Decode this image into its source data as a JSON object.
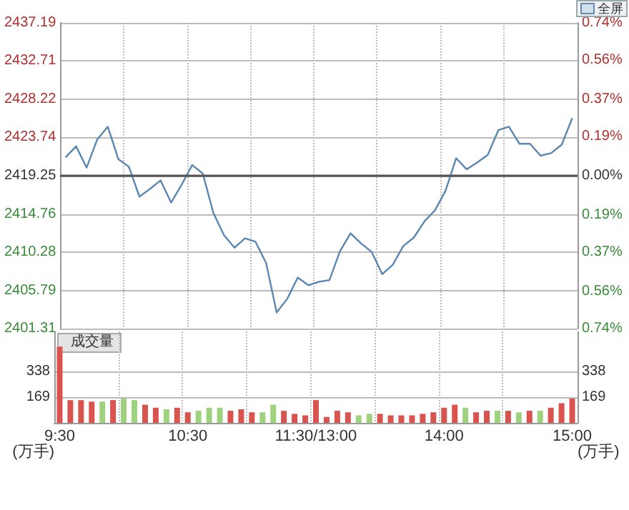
{
  "chart_data": [
    {
      "type": "line",
      "annotations": [
        "全屏"
      ],
      "categories": [
        null,
        null,
        null,
        null,
        null,
        null,
        null,
        null,
        null,
        null,
        null,
        null,
        null,
        null,
        null,
        null,
        null,
        null,
        null,
        null,
        null,
        null,
        null,
        null,
        null,
        null,
        null,
        null,
        null,
        null,
        null,
        null,
        null,
        null,
        null,
        null,
        null,
        null,
        null,
        null,
        null,
        null,
        null,
        null,
        null,
        null,
        null,
        null,
        null
      ],
      "series": [
        {
          "color": "#5b87b0",
          "values": [
            2421.4,
            2422.7,
            2420.2,
            2423.5,
            2425.0,
            2421.2,
            2420.3,
            2416.8,
            2417.7,
            2418.7,
            2416.1,
            2418.2,
            2420.5,
            2419.5,
            2414.9,
            2412.3,
            2410.8,
            2411.9,
            2411.5,
            2409.0,
            2403.2,
            2404.8,
            2407.3,
            2406.4,
            2406.8,
            2407.0,
            2410.4,
            2412.5,
            2411.3,
            2410.3,
            2407.7,
            2408.8,
            2411.0,
            2412.0,
            2413.9,
            2415.2,
            2417.5,
            2421.3,
            2420.0,
            2420.8,
            2421.7,
            2424.6,
            2425.0,
            2423.0,
            2423.0,
            2421.6,
            2421.9,
            2422.9,
            2426.0
          ]
        }
      ],
      "ylim": [
        2401.31,
        2437.19
      ],
      "yticks": [
        2401.31,
        2405.79,
        2410.28,
        2414.76,
        2419.25,
        2423.74,
        2428.22,
        2432.71,
        2437.19
      ],
      "y2lim": [
        -0.74,
        0.74
      ],
      "y2ticks": [
        {
          "value": -0.74,
          "label": "0.74%"
        },
        {
          "value": -0.56,
          "label": "0.56%"
        },
        {
          "value": -0.37,
          "label": "0.37%"
        },
        {
          "value": -0.19,
          "label": "0.19%"
        },
        {
          "value": 0,
          "label": "0.00%"
        },
        {
          "value": 0.19,
          "label": "0.19%"
        },
        {
          "value": 0.37,
          "label": "0.37%"
        },
        {
          "value": 0.56,
          "label": "0.56%"
        },
        {
          "value": 0.74,
          "label": "0.74%"
        }
      ],
      "ref_lines": [
        {
          "axis": "y",
          "value": 2419.25,
          "color": "#555555"
        }
      ],
      "grid": true,
      "tick_labels": "y",
      "line_style": "solid"
    },
    {
      "type": "bar",
      "ylabel": "(万手)",
      "y2label": "(万手)",
      "annotations": [
        "成交量"
      ],
      "categories": [
        "9:30",
        null,
        null,
        null,
        null,
        null,
        null,
        null,
        null,
        null,
        null,
        null,
        "10:30",
        null,
        null,
        null,
        null,
        null,
        null,
        null,
        null,
        null,
        null,
        null,
        "11:30/13:00",
        null,
        null,
        null,
        null,
        null,
        null,
        null,
        null,
        null,
        null,
        null,
        "14:00",
        null,
        null,
        null,
        null,
        null,
        null,
        null,
        null,
        null,
        null,
        null,
        "15:00"
      ],
      "values": [
        500,
        150,
        150,
        140,
        140,
        150,
        160,
        150,
        120,
        100,
        90,
        100,
        70,
        80,
        100,
        100,
        80,
        90,
        70,
        70,
        120,
        80,
        60,
        50,
        150,
        40,
        80,
        70,
        50,
        60,
        60,
        50,
        50,
        50,
        60,
        70,
        100,
        120,
        100,
        70,
        80,
        80,
        80,
        70,
        80,
        80,
        100,
        130,
        160
      ],
      "colors": [
        "#d9534f",
        "#d9534f",
        "#d9534f",
        "#d9534f",
        "#9fd27f",
        "#d9534f",
        "#9fd27f",
        "#9fd27f",
        "#d9534f",
        "#d9534f",
        "#9fd27f",
        "#d9534f",
        "#d9534f",
        "#9fd27f",
        "#9fd27f",
        "#9fd27f",
        "#d9534f",
        "#d9534f",
        "#d9534f",
        "#9fd27f",
        "#9fd27f",
        "#d9534f",
        "#d9534f",
        "#d9534f",
        "#d9534f",
        "#d9534f",
        "#d9534f",
        "#d9534f",
        "#9fd27f",
        "#9fd27f",
        "#d9534f",
        "#d9534f",
        "#d9534f",
        "#d9534f",
        "#d9534f",
        "#d9534f",
        "#d9534f",
        "#d9534f",
        "#9fd27f",
        "#d9534f",
        "#d9534f",
        "#9fd27f",
        "#d9534f",
        "#9fd27f",
        "#d9534f",
        "#9fd27f",
        "#d9534f",
        "#d9534f",
        "#d9534f"
      ],
      "ylim": [
        0,
        600
      ],
      "yticks": [
        169,
        338
      ],
      "y2lim": [
        0,
        600
      ],
      "y2ticks": [
        169,
        338
      ],
      "grid": true
    }
  ]
}
